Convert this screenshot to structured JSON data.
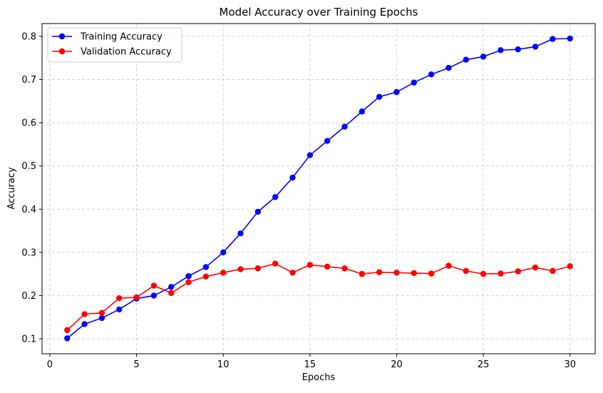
{
  "chart_data": {
    "type": "line",
    "title": "Model Accuracy over Training Epochs",
    "xlabel": "Epochs",
    "ylabel": "Accuracy",
    "xlim": [
      -0.45,
      31.45
    ],
    "ylim": [
      0.0653,
      0.8297
    ],
    "xticks": [
      0,
      5,
      10,
      15,
      20,
      25,
      30
    ],
    "xtick_labels": [
      "0",
      "5",
      "10",
      "15",
      "20",
      "25",
      "30"
    ],
    "yticks": [
      0.1,
      0.2,
      0.3,
      0.4,
      0.5,
      0.6,
      0.7,
      0.8
    ],
    "ytick_labels": [
      "0.1",
      "0.2",
      "0.3",
      "0.4",
      "0.5",
      "0.6",
      "0.7",
      "0.8"
    ],
    "grid": true,
    "legend_position": "top-left",
    "x": [
      1,
      2,
      3,
      4,
      5,
      6,
      7,
      8,
      9,
      10,
      11,
      12,
      13,
      14,
      15,
      16,
      17,
      18,
      19,
      20,
      21,
      22,
      23,
      24,
      25,
      26,
      27,
      28,
      29,
      30
    ],
    "series": [
      {
        "name": "Training Accuracy",
        "color": "#0000ff",
        "values": [
          0.101,
          0.134,
          0.148,
          0.168,
          0.193,
          0.2,
          0.22,
          0.245,
          0.266,
          0.3,
          0.344,
          0.394,
          0.428,
          0.473,
          0.525,
          0.558,
          0.591,
          0.626,
          0.66,
          0.671,
          0.693,
          0.712,
          0.727,
          0.746,
          0.753,
          0.768,
          0.77,
          0.776,
          0.794,
          0.795
        ]
      },
      {
        "name": "Validation Accuracy",
        "color": "#ff0000",
        "values": [
          0.12,
          0.157,
          0.16,
          0.194,
          0.196,
          0.223,
          0.206,
          0.231,
          0.244,
          0.253,
          0.261,
          0.263,
          0.274,
          0.253,
          0.271,
          0.267,
          0.263,
          0.25,
          0.254,
          0.253,
          0.252,
          0.251,
          0.269,
          0.257,
          0.25,
          0.251,
          0.256,
          0.265,
          0.257,
          0.268
        ]
      }
    ]
  }
}
